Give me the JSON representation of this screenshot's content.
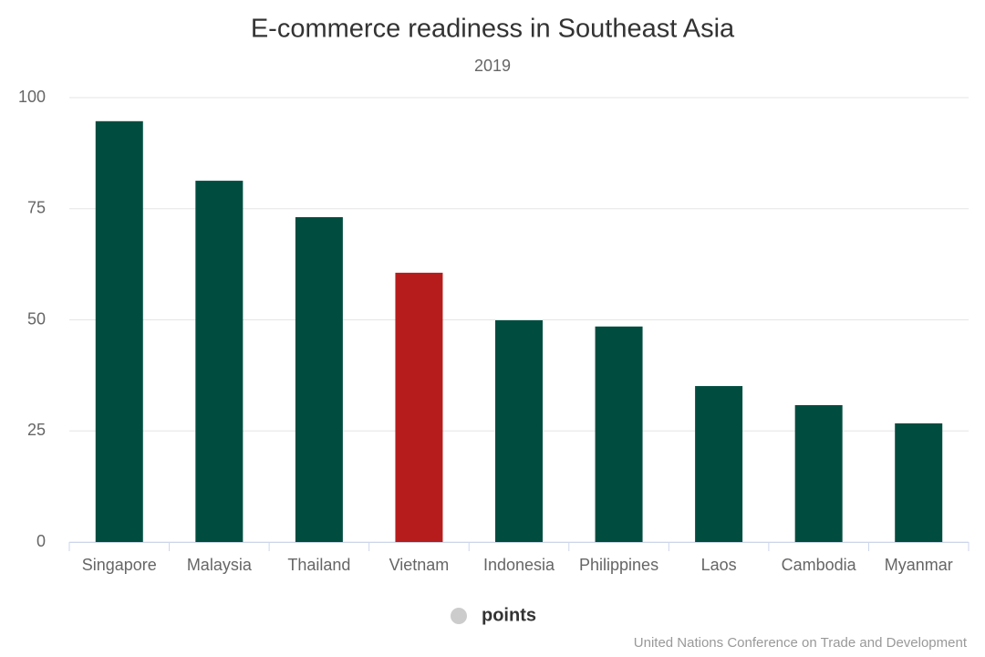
{
  "chart_data": {
    "type": "bar",
    "title": "E-commerce readiness in Southeast Asia",
    "subtitle": "2019",
    "categories": [
      "Singapore",
      "Malaysia",
      "Thailand",
      "Vietnam",
      "Indonesia",
      "Philippines",
      "Laos",
      "Cambodia",
      "Myanmar"
    ],
    "series": [
      {
        "name": "points",
        "values": [
          94.7,
          81.3,
          73.1,
          60.6,
          49.9,
          48.5,
          35.1,
          30.8,
          26.7
        ],
        "colors": [
          "#004d40",
          "#004d40",
          "#004d40",
          "#b71c1c",
          "#004d40",
          "#004d40",
          "#004d40",
          "#004d40",
          "#004d40"
        ]
      }
    ],
    "legend_marker_color": "#cccccc",
    "ylim": [
      0,
      100
    ],
    "yticks": [
      0,
      25,
      50,
      75,
      100
    ],
    "grid": true,
    "credits": "United Nations Conference on Trade and Development"
  }
}
